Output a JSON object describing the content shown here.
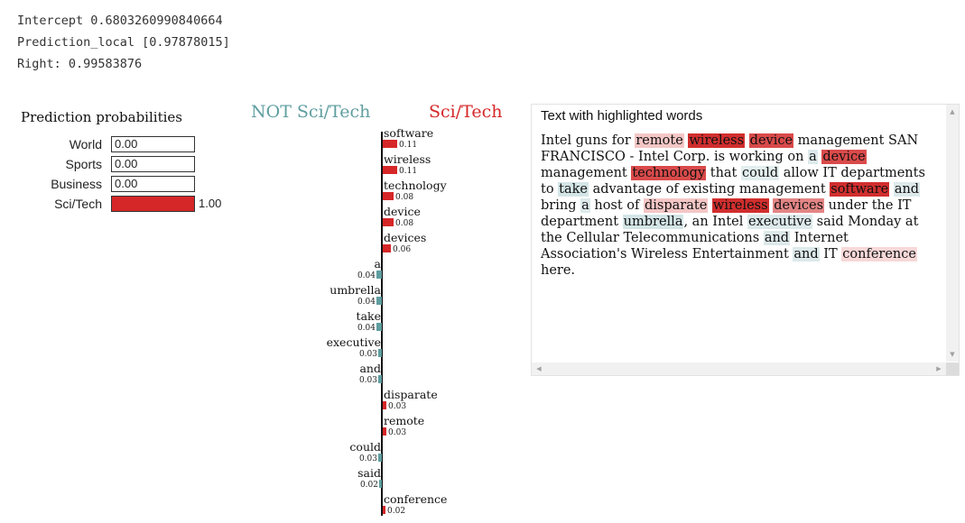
{
  "console": {
    "lines": [
      "Intercept 0.6803260990840664",
      "Prediction_local [0.97878015]",
      "Right: 0.99583876"
    ]
  },
  "prediction_probabilities": {
    "title": "Prediction probabilities",
    "items": [
      {
        "label": "World",
        "value": 0.0,
        "display": "0.00"
      },
      {
        "label": "Sports",
        "value": 0.0,
        "display": "0.00"
      },
      {
        "label": "Business",
        "value": 0.0,
        "display": "0.00"
      },
      {
        "label": "Sci/Tech",
        "value": 1.0,
        "display": "1.00"
      }
    ],
    "bar_color": "#d62728"
  },
  "explanation": {
    "negative_class": "NOT Sci/Tech",
    "positive_class": "Sci/Tech",
    "negative_color": "#5f9ea0",
    "positive_color": "#d62728",
    "features": [
      {
        "word": "software",
        "weight": 0.11,
        "display": "0.11",
        "side": "pos"
      },
      {
        "word": "wireless",
        "weight": 0.11,
        "display": "0.11",
        "side": "pos"
      },
      {
        "word": "technology",
        "weight": 0.08,
        "display": "0.08",
        "side": "pos"
      },
      {
        "word": "device",
        "weight": 0.08,
        "display": "0.08",
        "side": "pos"
      },
      {
        "word": "devices",
        "weight": 0.06,
        "display": "0.06",
        "side": "pos"
      },
      {
        "word": "a",
        "weight": 0.04,
        "display": "0.04",
        "side": "neg"
      },
      {
        "word": "umbrella",
        "weight": 0.04,
        "display": "0.04",
        "side": "neg"
      },
      {
        "word": "take",
        "weight": 0.04,
        "display": "0.04",
        "side": "neg"
      },
      {
        "word": "executive",
        "weight": 0.03,
        "display": "0.03",
        "side": "neg"
      },
      {
        "word": "and",
        "weight": 0.03,
        "display": "0.03",
        "side": "neg"
      },
      {
        "word": "disparate",
        "weight": 0.03,
        "display": "0.03",
        "side": "pos"
      },
      {
        "word": "remote",
        "weight": 0.03,
        "display": "0.03",
        "side": "pos"
      },
      {
        "word": "could",
        "weight": 0.03,
        "display": "0.03",
        "side": "neg"
      },
      {
        "word": "said",
        "weight": 0.02,
        "display": "0.02",
        "side": "neg"
      },
      {
        "word": "conference",
        "weight": 0.02,
        "display": "0.02",
        "side": "pos"
      }
    ]
  },
  "text_panel": {
    "title": "Text with highlighted words",
    "segments": [
      {
        "t": "Intel guns for "
      },
      {
        "t": "remote",
        "c": "#f4c6c6"
      },
      {
        "t": " "
      },
      {
        "t": "wireless",
        "c": "#d12e2e"
      },
      {
        "t": " "
      },
      {
        "t": "device",
        "c": "#d94a4a"
      },
      {
        "t": " management SAN FRANCISCO - Intel Corp. is working on "
      },
      {
        "t": "a",
        "c": "#dde9ea"
      },
      {
        "t": " "
      },
      {
        "t": "device",
        "c": "#d94a4a"
      },
      {
        "t": " management "
      },
      {
        "t": "technology",
        "c": "#d94a4a"
      },
      {
        "t": " that "
      },
      {
        "t": "could",
        "c": "#e3eeef"
      },
      {
        "t": " allow IT departments to "
      },
      {
        "t": "take",
        "c": "#d4e5e7"
      },
      {
        "t": " advantage of existing management "
      },
      {
        "t": "software",
        "c": "#d12e2e"
      },
      {
        "t": " "
      },
      {
        "t": "and",
        "c": "#dde9ea"
      },
      {
        "t": " bring "
      },
      {
        "t": "a",
        "c": "#dde9ea"
      },
      {
        "t": " host of "
      },
      {
        "t": "disparate",
        "c": "#f4c6c6"
      },
      {
        "t": " "
      },
      {
        "t": "wireless",
        "c": "#d12e2e"
      },
      {
        "t": " "
      },
      {
        "t": "devices",
        "c": "#e38585"
      },
      {
        "t": " under the IT department "
      },
      {
        "t": "umbrella",
        "c": "#d4e5e7"
      },
      {
        "t": ", an Intel "
      },
      {
        "t": "executive",
        "c": "#dde9ea"
      },
      {
        "t": " said Monday at the Cellular Telecommunications "
      },
      {
        "t": "and",
        "c": "#dde9ea"
      },
      {
        "t": " Internet Association's Wireless Entertainment "
      },
      {
        "t": "and",
        "c": "#dde9ea"
      },
      {
        "t": " IT "
      },
      {
        "t": "conference",
        "c": "#f8d8d8"
      },
      {
        "t": " here."
      }
    ]
  }
}
